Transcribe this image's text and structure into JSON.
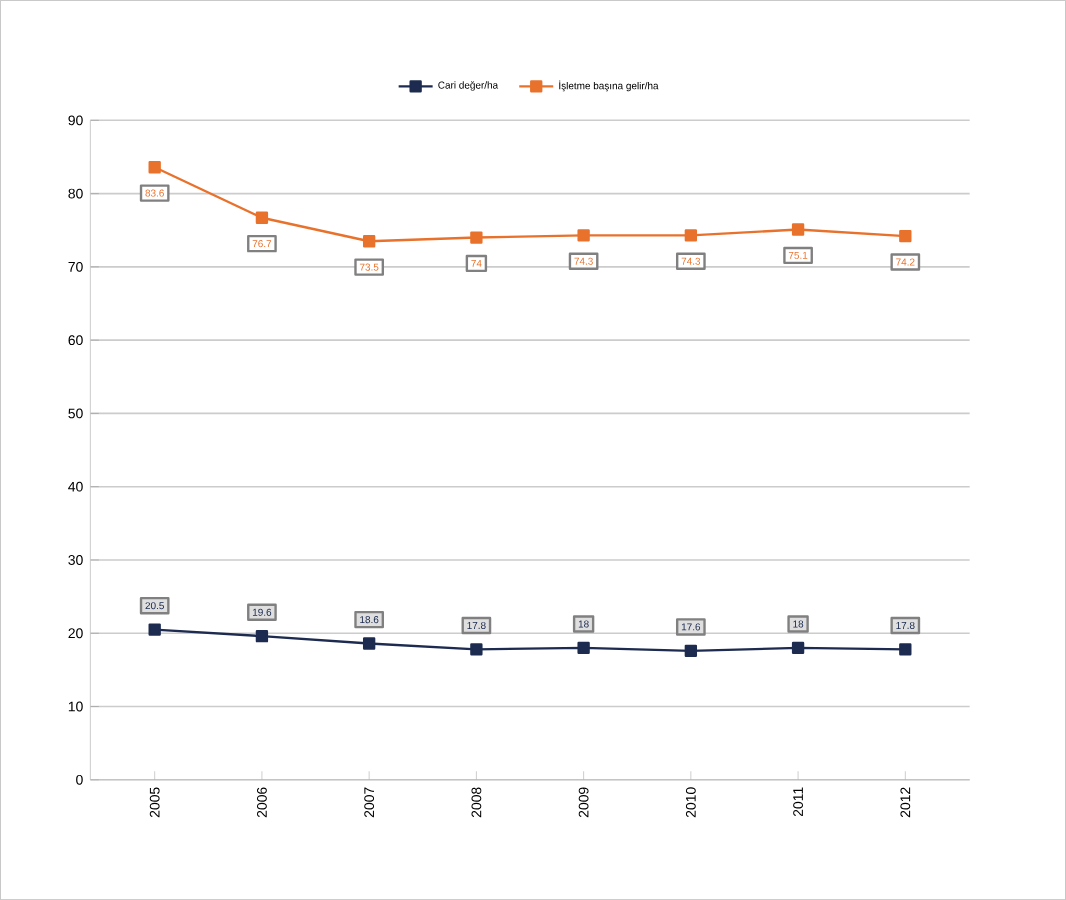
{
  "chart_data": {
    "type": "line",
    "categories": [
      "2005",
      "2006",
      "2007",
      "2008",
      "2009",
      "2010",
      "2011",
      "2012"
    ],
    "series": [
      {
        "name": "Cari değer/ha",
        "color": "#1c2b4f",
        "values": [
          20.5,
          19.6,
          18.6,
          17.8,
          18,
          17.6,
          18,
          17.8
        ]
      },
      {
        "name": "İşletme başına gelir/ha",
        "color": "#e8722c",
        "values": [
          83.6,
          76.7,
          73.5,
          74,
          74.3,
          74.3,
          75.1,
          74.2
        ]
      }
    ],
    "ylim": [
      0,
      90
    ],
    "yticks": [
      0,
      10,
      20,
      30,
      40,
      50,
      60,
      70,
      80,
      90
    ],
    "grid": "y",
    "legend": "top",
    "marker": "square",
    "data_labels": true
  }
}
